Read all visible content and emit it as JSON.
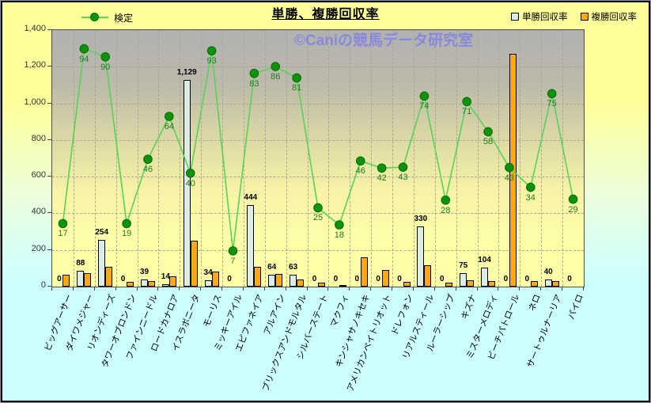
{
  "title": "単勝、複勝回収率",
  "watermark": "©Caniの競馬データ研究室",
  "legend": {
    "line_label": "検定",
    "bar1_label": "単勝回収率",
    "bar2_label": "複勝回収率"
  },
  "colors": {
    "background_top": "#FFFF9C",
    "background_bottom": "#CCFFFF",
    "plot_top": "#B1B1B1",
    "plot_bottom": "#FFFFA8",
    "bar_tansho": "#DCEEE4",
    "bar_fukusho": "#FFA816",
    "line": "#55D455",
    "marker": "#0C950C",
    "marker_label": "#1E7D1E",
    "watermark": "#8282E4",
    "border": "#000000"
  },
  "chart_data": {
    "type": "bar",
    "subtype": "combo-bar-line",
    "title": "単勝、複勝回収率",
    "legend_position": "top",
    "grid": "dashed horizontal and vertical",
    "ylim": [
      0,
      1400
    ],
    "ytick_values": [
      0,
      200,
      400,
      600,
      800,
      1000,
      1200,
      1400
    ],
    "ytick_labels": [
      "0",
      "200",
      "400",
      "600",
      "800",
      "1,000",
      "1,200",
      "1,400"
    ],
    "categories": [
      "ビッグアーサー",
      "ダイワメジャー",
      "リオンディーズ",
      "タワーオブロンドン",
      "ファインニードル",
      "ロードカナロア",
      "イスラボニータ",
      "モーリス",
      "ミッキーアイル",
      "エピファネイア",
      "アルアイン",
      "ブリックスアンドモルタル",
      "シルバーステート",
      "マクフィ",
      "キンシャサノキセキ",
      "アメリカンペイトリオット",
      "ドレフォン",
      "リアルスティール",
      "ルーラーシップ",
      "キズナ",
      "ミスターメロディ",
      "ビーチパトロール",
      "ネロ",
      "サートゥルナーリア",
      "パイロ"
    ],
    "series": [
      {
        "name": "単勝回収率",
        "chart": "bar",
        "color": "#DCEEE4",
        "values": [
          0,
          88,
          254,
          0,
          39,
          14,
          1129,
          34,
          0,
          444,
          64,
          63,
          0,
          0,
          0,
          0,
          0,
          330,
          0,
          75,
          104,
          0,
          0,
          40,
          0
        ],
        "data_labels": [
          "0",
          "88",
          "254",
          "0",
          "39",
          "14",
          "1,129",
          "34",
          "0",
          "444",
          "64",
          "63",
          "0",
          "0",
          "0",
          "0",
          "0",
          "330",
          "0",
          "75",
          "104",
          "0",
          "0",
          "40",
          "0"
        ]
      },
      {
        "name": "複勝回収率",
        "chart": "bar",
        "color": "#FFA816",
        "values": [
          65,
          75,
          110,
          25,
          30,
          55,
          250,
          80,
          0,
          110,
          70,
          40,
          20,
          10,
          160,
          90,
          25,
          115,
          20,
          35,
          30,
          1270,
          30,
          30,
          0
        ]
      },
      {
        "name": "検定",
        "chart": "line",
        "color": "#55D455",
        "marker_color": "#0C950C",
        "data_labels": [
          "17",
          "94",
          "90",
          "19",
          "46",
          "64",
          "40",
          "93",
          "7",
          "83",
          "86",
          "81",
          "25",
          "18",
          "46",
          "42",
          "43",
          "74",
          "28",
          "71",
          "58",
          "43",
          "34",
          "75",
          "29"
        ],
        "plotted_y": [
          344,
          1298,
          1254,
          344,
          695,
          929,
          619,
          1287,
          195,
          1164,
          1201,
          1139,
          430,
          337,
          686,
          647,
          652,
          1040,
          472,
          1010,
          845,
          650,
          542,
          1053,
          477
        ]
      }
    ]
  }
}
